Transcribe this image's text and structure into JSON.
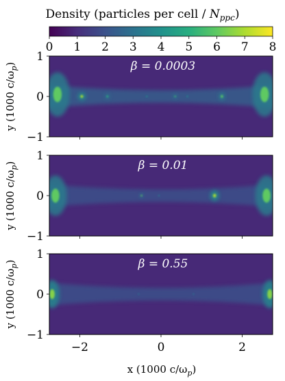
{
  "chart_data": {
    "type": "heatmap",
    "colorbar": {
      "label_main": "Density (particles per cell / ",
      "label_var": "N",
      "label_sub": "ppc",
      "label_close": ")",
      "range": [
        0,
        8
      ],
      "ticks": [
        "0",
        "1",
        "2",
        "3",
        "4",
        "5",
        "6",
        "7",
        "8"
      ],
      "colormap": "viridis"
    },
    "xlabel": "x (1000 c/ω",
    "xlabel_sub": "p",
    "xlabel_close": ")",
    "ylabel": "y (1000 c/ω",
    "ylabel_sub": "p",
    "ylabel_close": ")",
    "xlim": [
      -2.75,
      2.75
    ],
    "ylim": [
      -1,
      1
    ],
    "xticks": [
      {
        "v": -2,
        "label": "−2"
      },
      {
        "v": 0,
        "label": "0"
      },
      {
        "v": 2,
        "label": "2"
      }
    ],
    "yticks": [
      {
        "v": 1,
        "label": "1"
      },
      {
        "v": 0,
        "label": "0"
      },
      {
        "v": -1,
        "label": "−1"
      }
    ],
    "panels": [
      {
        "label": "β = 0.0003",
        "plasmoids": [
          {
            "x": -2.55,
            "y": 0.05,
            "rx": 0.3,
            "ry": 0.55,
            "level": 6.0
          },
          {
            "x": -1.95,
            "y": 0.0,
            "rx": 0.1,
            "ry": 0.1,
            "level": 7.0
          },
          {
            "x": -1.32,
            "y": 0.0,
            "rx": 0.07,
            "ry": 0.08,
            "level": 5.0
          },
          {
            "x": -0.35,
            "y": 0.0,
            "rx": 0.03,
            "ry": 0.03,
            "level": 4.0
          },
          {
            "x": 0.35,
            "y": 0.0,
            "rx": 0.05,
            "ry": 0.06,
            "level": 5.5
          },
          {
            "x": 0.65,
            "y": 0.0,
            "rx": 0.03,
            "ry": 0.03,
            "level": 4.0
          },
          {
            "x": 1.5,
            "y": 0.0,
            "rx": 0.08,
            "ry": 0.1,
            "level": 6.0
          },
          {
            "x": 2.55,
            "y": 0.05,
            "rx": 0.3,
            "ry": 0.55,
            "level": 6.0
          }
        ],
        "sheet_level": 2.5
      },
      {
        "label": "β = 0.01",
        "plasmoids": [
          {
            "x": -2.6,
            "y": 0.0,
            "rx": 0.28,
            "ry": 0.5,
            "level": 6.0
          },
          {
            "x": -0.48,
            "y": 0.0,
            "rx": 0.04,
            "ry": 0.05,
            "level": 6.0
          },
          {
            "x": -0.05,
            "y": 0.0,
            "rx": 0.02,
            "ry": 0.02,
            "level": 3.5
          },
          {
            "x": 1.32,
            "y": 0.0,
            "rx": 0.11,
            "ry": 0.13,
            "level": 7.0
          },
          {
            "x": 2.6,
            "y": 0.0,
            "rx": 0.28,
            "ry": 0.5,
            "level": 6.0
          }
        ],
        "sheet_level": 2.0
      },
      {
        "label": "β = 0.55",
        "plasmoids": [
          {
            "x": -2.68,
            "y": 0.0,
            "rx": 0.18,
            "ry": 0.35,
            "level": 6.5
          },
          {
            "x": -0.55,
            "y": 0.0,
            "rx": 0.03,
            "ry": 0.03,
            "level": 3.0
          },
          {
            "x": 0.8,
            "y": 0.0,
            "rx": 0.03,
            "ry": 0.03,
            "level": 3.0
          },
          {
            "x": 2.68,
            "y": 0.0,
            "rx": 0.18,
            "ry": 0.35,
            "level": 6.5
          }
        ],
        "sheet_level": 2.0
      }
    ]
  }
}
